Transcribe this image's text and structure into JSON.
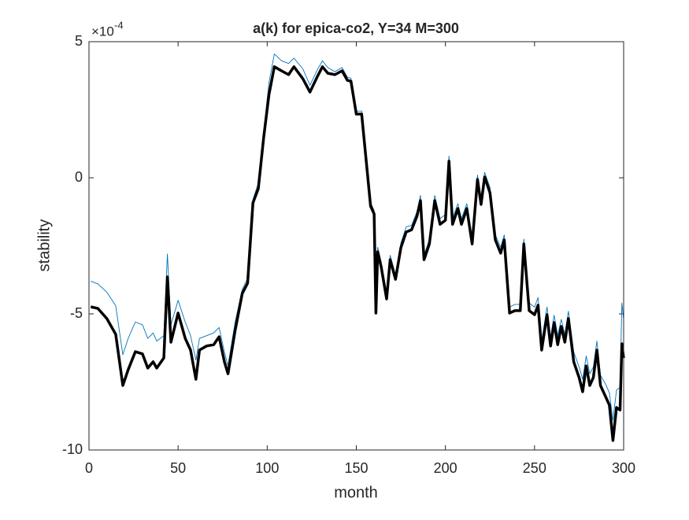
{
  "chart_data": {
    "type": "line",
    "title": "a(k) for epica-co2, Y=34 M=300",
    "x_label": "month",
    "y_label": "stability",
    "y_multiplier_base": "×10",
    "y_multiplier_exponent": "-4",
    "x": [
      1,
      5,
      10,
      15,
      19,
      22,
      26,
      30,
      33,
      36,
      38,
      42,
      44,
      46,
      50,
      54,
      57,
      60,
      62,
      66,
      70,
      73,
      76,
      78,
      82,
      86,
      89,
      92,
      95,
      98,
      101,
      104,
      108,
      112,
      115,
      120,
      124,
      128,
      131,
      134,
      138,
      142,
      145,
      147,
      150,
      153,
      156,
      158,
      160,
      161,
      162,
      164,
      167,
      169,
      172,
      175,
      178,
      181,
      184,
      186,
      188,
      191,
      194,
      197,
      200,
      202,
      204,
      207,
      209,
      212,
      215,
      218,
      220,
      222,
      225,
      228,
      231,
      233,
      236,
      239,
      242,
      244,
      247,
      250,
      252,
      254,
      257,
      259,
      261,
      263,
      265,
      267,
      269,
      272,
      275,
      277,
      279,
      281,
      283,
      285,
      287,
      290,
      292,
      294,
      296,
      298,
      299,
      300
    ],
    "series": [
      {
        "color": "#0072bd",
        "width": 0.9,
        "values": [
          -3.8,
          -3.9,
          -4.2,
          -4.7,
          -6.5,
          -5.9,
          -5.3,
          -5.4,
          -5.9,
          -5.7,
          -6.0,
          -5.8,
          -2.8,
          -5.4,
          -4.5,
          -5.3,
          -5.8,
          -6.7,
          -5.9,
          -5.8,
          -5.7,
          -5.5,
          -6.4,
          -6.9,
          -5.3,
          -4.1,
          -3.7,
          -0.8,
          -0.2,
          1.7,
          3.5,
          4.55,
          4.3,
          4.2,
          4.4,
          4.0,
          3.4,
          3.95,
          4.3,
          4.05,
          3.9,
          4.05,
          3.7,
          3.65,
          2.45,
          2.45,
          0.45,
          -0.9,
          -1.2,
          -4.8,
          -2.55,
          -3.1,
          -4.25,
          -2.85,
          -3.55,
          -2.4,
          -1.8,
          -1.75,
          -1.25,
          -0.65,
          -2.85,
          -2.25,
          -0.65,
          -1.5,
          -1.35,
          0.8,
          -1.5,
          -0.95,
          -1.5,
          -0.95,
          -2.25,
          0.1,
          -0.8,
          0.2,
          -0.35,
          -2.1,
          -2.55,
          -2.1,
          -4.75,
          -4.65,
          -4.65,
          -2.25,
          -4.6,
          -4.75,
          -4.4,
          -6.0,
          -4.75,
          -5.85,
          -5.05,
          -5.8,
          -5.2,
          -5.75,
          -4.9,
          -6.4,
          -6.95,
          -7.4,
          -6.55,
          -7.2,
          -6.95,
          -6.0,
          -7.25,
          -7.6,
          -7.9,
          -8.9,
          -7.8,
          -7.7,
          -4.6,
          -5.2
        ]
      },
      {
        "color": "#000000",
        "width": 3.5,
        "values": [
          -4.74,
          -4.8,
          -5.17,
          -5.75,
          -7.63,
          -7.05,
          -6.39,
          -6.47,
          -6.99,
          -6.76,
          -6.99,
          -6.62,
          -3.64,
          -6.04,
          -4.97,
          -5.9,
          -6.33,
          -7.4,
          -6.33,
          -6.18,
          -6.13,
          -5.84,
          -6.76,
          -7.2,
          -5.61,
          -4.25,
          -3.87,
          -0.92,
          -0.4,
          1.47,
          3.06,
          4.08,
          3.93,
          3.79,
          4.08,
          3.64,
          3.15,
          3.7,
          4.08,
          3.84,
          3.79,
          3.93,
          3.58,
          3.55,
          2.34,
          2.34,
          0.32,
          -1.04,
          -1.33,
          -4.97,
          -2.72,
          -3.29,
          -4.45,
          -3.01,
          -3.73,
          -2.57,
          -1.99,
          -1.91,
          -1.42,
          -0.84,
          -3.01,
          -2.43,
          -0.84,
          -1.71,
          -1.56,
          0.61,
          -1.71,
          -1.13,
          -1.71,
          -1.13,
          -2.43,
          -0.06,
          -0.98,
          0.03,
          -0.55,
          -2.28,
          -2.77,
          -2.28,
          -4.97,
          -4.88,
          -4.88,
          -2.43,
          -4.88,
          -5.03,
          -4.68,
          -6.33,
          -5.03,
          -6.18,
          -5.32,
          -6.13,
          -5.46,
          -6.04,
          -5.17,
          -6.76,
          -7.34,
          -7.86,
          -6.91,
          -7.63,
          -7.34,
          -6.33,
          -7.63,
          -8.06,
          -8.35,
          -9.65,
          -8.44,
          -8.53,
          -6.1,
          -6.62
        ]
      }
    ],
    "xlim": [
      0,
      300
    ],
    "xticks": [
      0,
      50,
      100,
      150,
      200,
      250,
      300
    ],
    "ylim": [
      -10,
      5
    ],
    "yticks": [
      -10,
      -5,
      0,
      5
    ],
    "grid": false
  }
}
